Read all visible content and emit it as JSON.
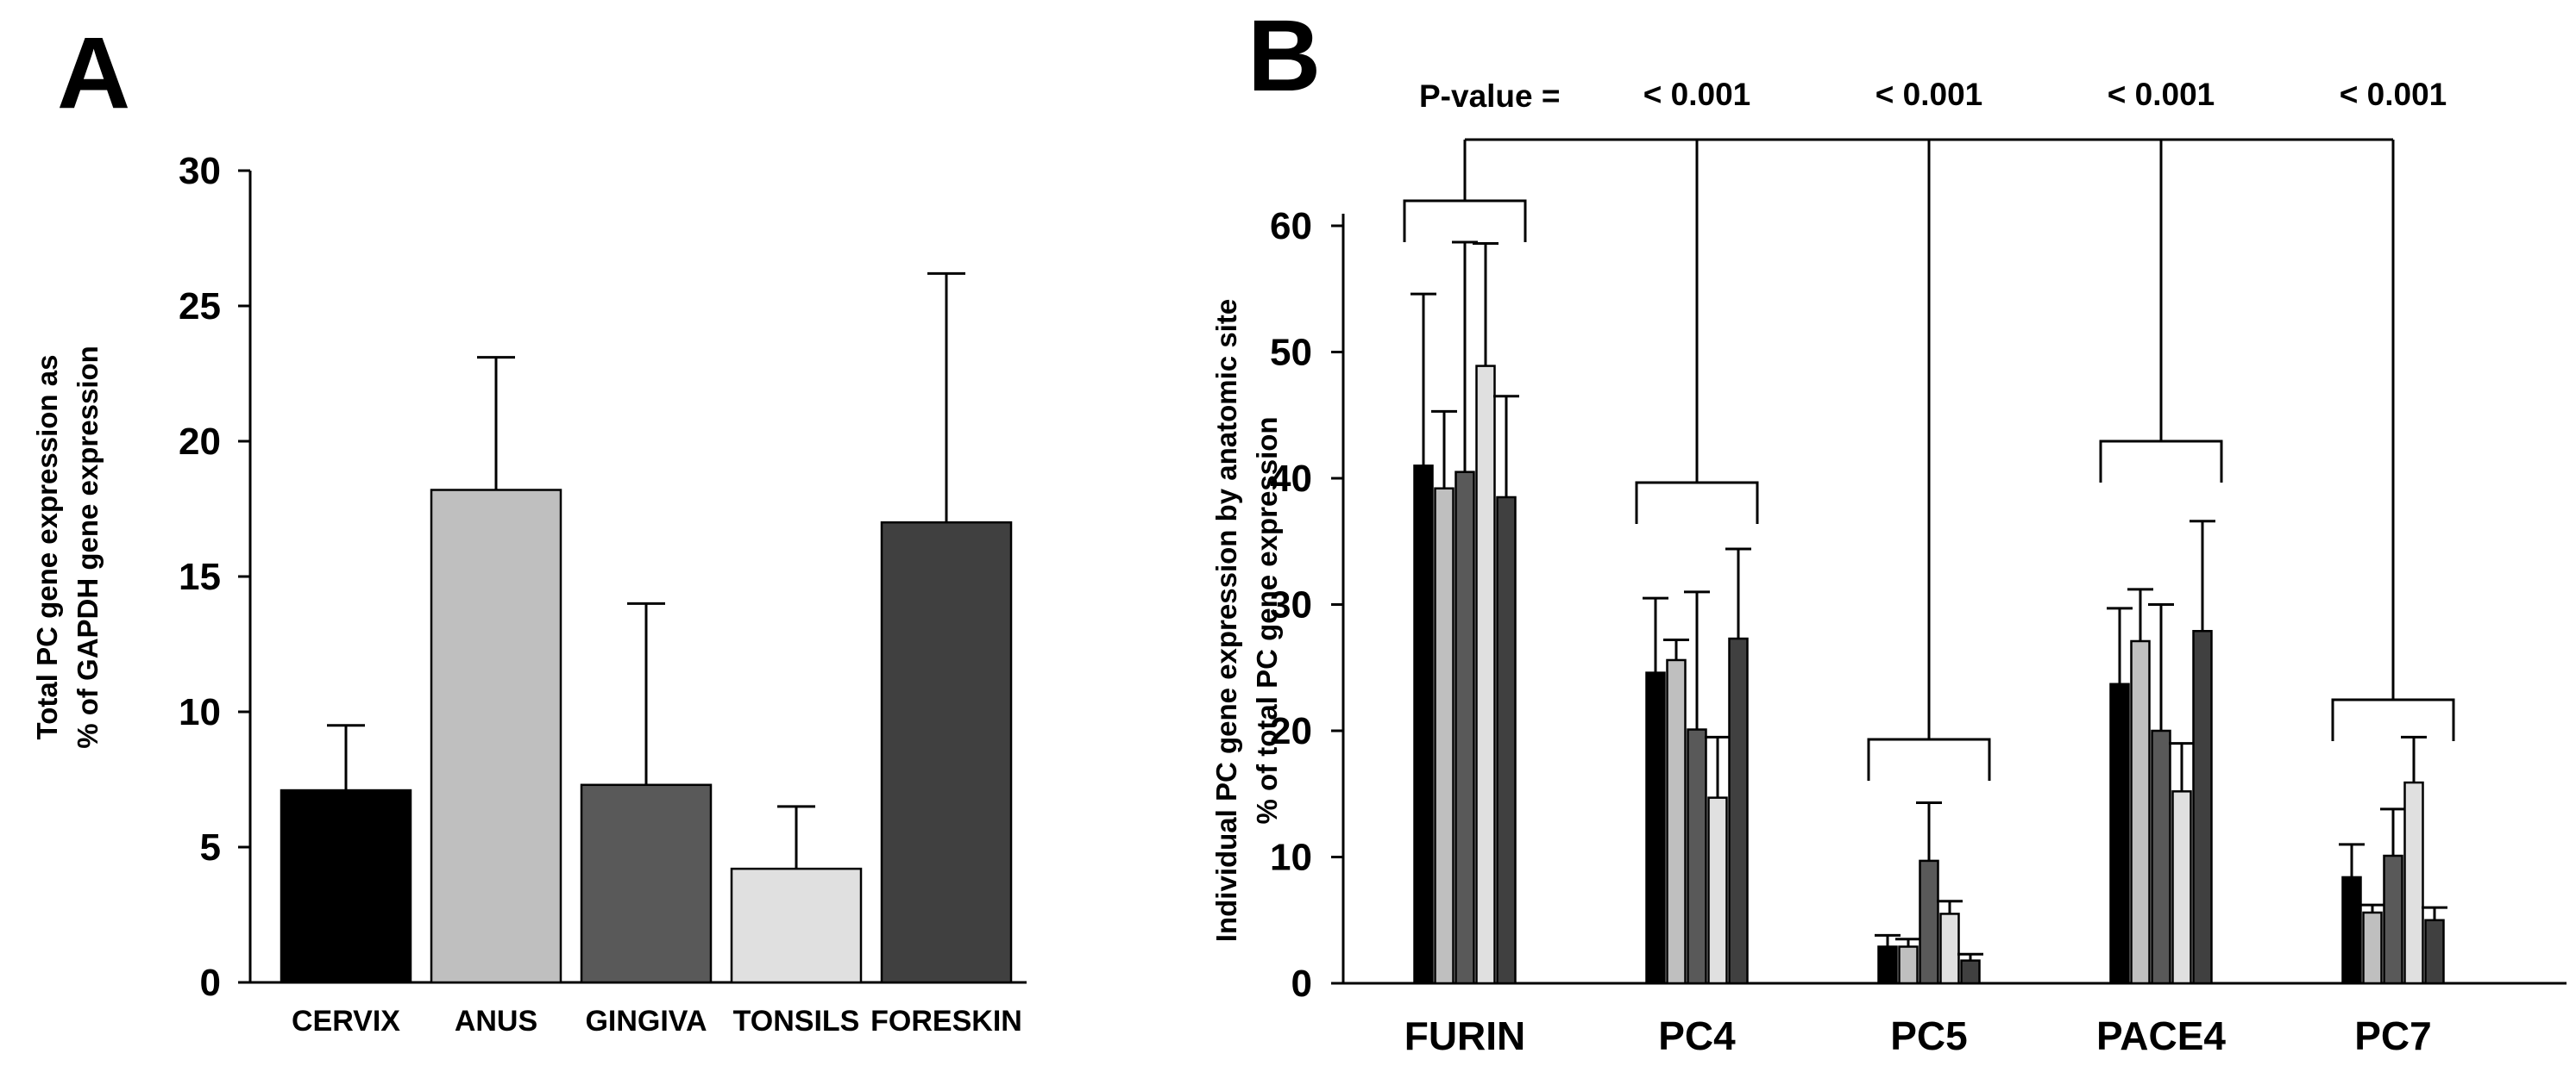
{
  "chart_data": [
    {
      "panel": "A",
      "type": "bar",
      "title": "",
      "xlabel": "",
      "ylabel_line1": "Total PC gene expression as",
      "ylabel_line2": "% of GAPDH gene expression",
      "ylim": [
        0,
        30
      ],
      "yticks": [
        0,
        5,
        10,
        15,
        20,
        25,
        30
      ],
      "categories": [
        "CERVIX",
        "ANUS",
        "GINGIVA",
        "TONSILS",
        "FORESKIN"
      ],
      "values": [
        7.1,
        18.2,
        7.3,
        4.2,
        17.0
      ],
      "errors": [
        2.4,
        4.9,
        6.7,
        2.3,
        9.2
      ],
      "colors": [
        "#000000",
        "#bfbfbf",
        "#595959",
        "#e0e0e0",
        "#404040"
      ]
    },
    {
      "panel": "B",
      "type": "bar",
      "title": "",
      "xlabel": "",
      "ylabel_line1": "Individual PC gene expression by anatomic site",
      "ylabel_line2": "% of total PC gene expression",
      "ylim": [
        0,
        60
      ],
      "yticks": [
        0,
        10,
        20,
        30,
        40,
        50,
        60
      ],
      "categories": [
        "FURIN",
        "PC4",
        "PC5",
        "PACE4",
        "PC7"
      ],
      "series": [
        {
          "name": "CERVIX",
          "color": "#000000",
          "values": [
            41.0,
            24.6,
            2.9,
            23.7,
            8.4
          ],
          "errors": [
            13.6,
            5.9,
            0.9,
            6.0,
            2.6
          ]
        },
        {
          "name": "ANUS",
          "color": "#bfbfbf",
          "values": [
            39.2,
            25.6,
            2.9,
            27.1,
            5.6
          ],
          "errors": [
            6.1,
            1.6,
            0.6,
            4.1,
            0.6
          ]
        },
        {
          "name": "GINGIVA",
          "color": "#595959",
          "values": [
            40.5,
            20.1,
            9.7,
            20.0,
            10.1
          ],
          "errors": [
            18.2,
            10.9,
            4.6,
            10.0,
            3.7
          ]
        },
        {
          "name": "TONSILS",
          "color": "#e0e0e0",
          "values": [
            48.9,
            14.7,
            5.5,
            15.2,
            15.9
          ],
          "errors": [
            9.7,
            4.8,
            1.0,
            3.8,
            3.6
          ]
        },
        {
          "name": "FORESKIN",
          "color": "#404040",
          "values": [
            38.5,
            27.3,
            1.8,
            27.9,
            5.0
          ],
          "errors": [
            8.0,
            7.1,
            0.5,
            8.7,
            1.0
          ]
        }
      ],
      "pvalue_label": "P-value =",
      "pvalues": [
        "< 0.001",
        "< 0.001",
        "< 0.001",
        "< 0.001"
      ]
    }
  ]
}
